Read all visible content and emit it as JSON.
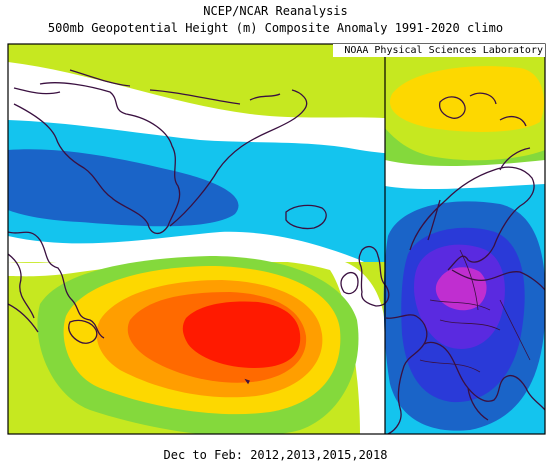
{
  "header": {
    "title_line1": "NCEP/NCAR Reanalysis",
    "title_line2": "500mb Geopotential Height (m) Composite Anomaly 1991-2020 climo"
  },
  "map": {
    "credit": "NOAA Physical Sciences Laboratory",
    "palette": {
      "red": "#ff1a00",
      "orange_red": "#ff6a00",
      "orange": "#ff9e00",
      "yellow": "#fdd800",
      "yellow_green": "#c6e820",
      "green": "#84d93c",
      "white": "#ffffff",
      "light_blue": "#14c4ee",
      "blue": "#1a64c8",
      "dark_blue": "#2a3ad8",
      "violet": "#5a2ae0",
      "magenta": "#c02ed0",
      "coastline": "#3a1040"
    }
  },
  "footer": {
    "caption": "Dec to Feb: 2012,2013,2015,2018"
  }
}
